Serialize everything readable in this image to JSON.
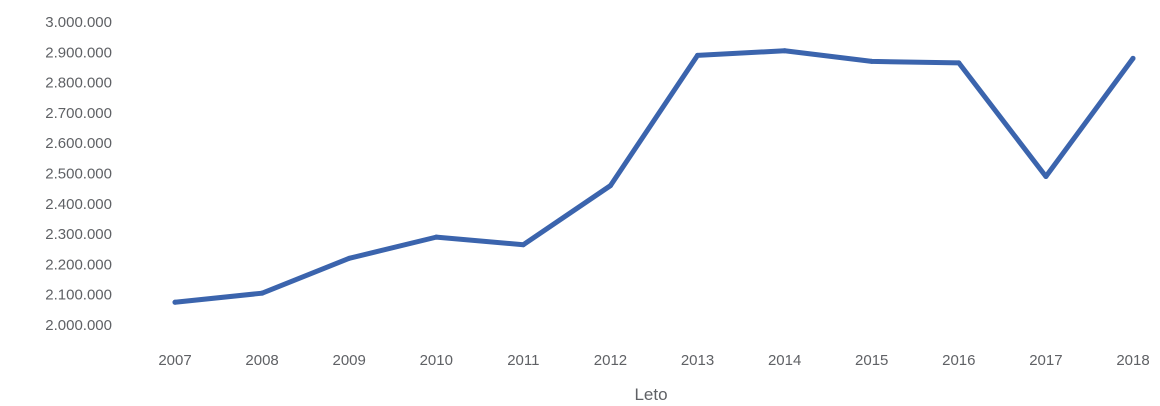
{
  "chart_data": {
    "type": "line",
    "title": "",
    "xlabel": "Leto",
    "ylabel": "",
    "grid": false,
    "legend": "none",
    "ylim": [
      2000000,
      3000000
    ],
    "yticks": [
      2000000,
      2100000,
      2200000,
      2300000,
      2400000,
      2500000,
      2600000,
      2700000,
      2800000,
      2900000,
      3000000
    ],
    "ytick_labels": [
      "2.000.000",
      "2.100.000",
      "2.200.000",
      "2.300.000",
      "2.400.000",
      "2.500.000",
      "2.600.000",
      "2.700.000",
      "2.800.000",
      "2.900.000",
      "3.000.000"
    ],
    "categories": [
      "2007",
      "2008",
      "2009",
      "2010",
      "2011",
      "2012",
      "2013",
      "2014",
      "2015",
      "2016",
      "2017",
      "2018"
    ],
    "series": [
      {
        "values": [
          2075000,
          2105000,
          2220000,
          2290000,
          2265000,
          2460000,
          2890000,
          2905000,
          2870000,
          2865000,
          2490000,
          2880000
        ],
        "color": "#3b64ad"
      }
    ]
  }
}
